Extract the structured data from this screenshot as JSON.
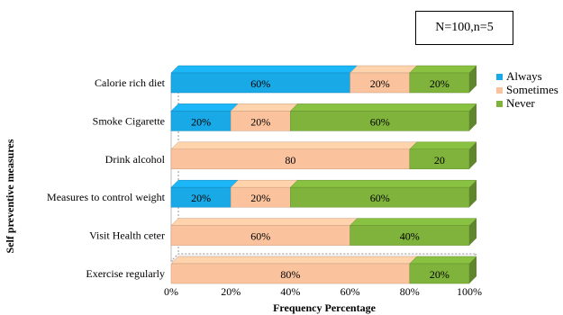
{
  "annotation": "N=100,n=5",
  "colors": {
    "Always": "#19A9E6",
    "Sometimes": "#FAC39E",
    "Never": "#7FB33C"
  },
  "chart_data": {
    "type": "bar",
    "orientation": "horizontal",
    "stacked": true,
    "xlabel": "Frequency Percentage",
    "ylabel": "Self preventive measures",
    "xlim": [
      0,
      100
    ],
    "x_ticks": [
      "0%",
      "20%",
      "40%",
      "60%",
      "80%",
      "100%"
    ],
    "legend_position": "right",
    "grid": false,
    "categories": [
      "Calorie rich diet",
      "Smoke Cigarette",
      "Drink alcohol",
      "Measures to control weight",
      "Visit Health ceter",
      "Exercise regularly"
    ],
    "series": [
      {
        "name": "Always",
        "values": [
          60,
          20,
          0,
          20,
          0,
          0
        ],
        "labels": [
          "60%",
          "20%",
          "0",
          "20%",
          "0",
          "0"
        ]
      },
      {
        "name": "Sometimes",
        "values": [
          20,
          20,
          80,
          20,
          60,
          80
        ],
        "labels": [
          "20%",
          "20%",
          "80",
          "20%",
          "60%",
          "80%"
        ]
      },
      {
        "name": "Never",
        "values": [
          20,
          60,
          20,
          60,
          40,
          20
        ],
        "labels": [
          "20%",
          "60%",
          "20",
          "60%",
          "40%",
          "20%"
        ]
      }
    ]
  }
}
